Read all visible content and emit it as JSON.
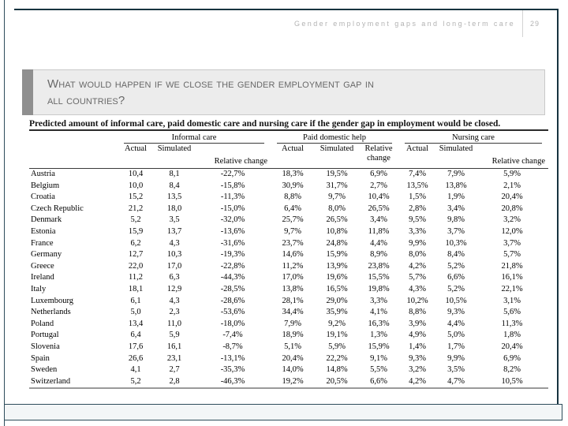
{
  "page": {
    "header_text": "Gender employment gaps and long-term care",
    "page_number": "29"
  },
  "title": {
    "line1": "What would happen if we close the gender employment gap in",
    "line2": "all countries?"
  },
  "table": {
    "caption": "Predicted amount of informal care, paid domestic care and nursing care if the gender gap in employment would be closed.",
    "groups": [
      {
        "label": "Informal care"
      },
      {
        "label": "Paid domestic help"
      },
      {
        "label": "Nursing care"
      }
    ],
    "subheaders": [
      "Actual",
      "Simulated",
      "Relative change"
    ],
    "rows": [
      {
        "country": "Austria",
        "values": [
          "10,4",
          "8,1",
          "-22,7%",
          "18,3%",
          "19,5%",
          "6,9%",
          "7,4%",
          "7,9%",
          "5,9%"
        ]
      },
      {
        "country": "Belgium",
        "values": [
          "10,0",
          "8,4",
          "-15,8%",
          "30,9%",
          "31,7%",
          "2,7%",
          "13,5%",
          "13,8%",
          "2,1%"
        ]
      },
      {
        "country": "Croatia",
        "values": [
          "15,2",
          "13,5",
          "-11,3%",
          "8,8%",
          "9,7%",
          "10,4%",
          "1,5%",
          "1,9%",
          "20,4%"
        ]
      },
      {
        "country": "Czech Republic",
        "values": [
          "21,2",
          "18,0",
          "-15,0%",
          "6,4%",
          "8,0%",
          "26,5%",
          "2,8%",
          "3,4%",
          "20,8%"
        ]
      },
      {
        "country": "Denmark",
        "values": [
          "5,2",
          "3,5",
          "-32,0%",
          "25,7%",
          "26,5%",
          "3,4%",
          "9,5%",
          "9,8%",
          "3,2%"
        ]
      },
      {
        "country": "Estonia",
        "values": [
          "15,9",
          "13,7",
          "-13,6%",
          "9,7%",
          "10,8%",
          "11,8%",
          "3,3%",
          "3,7%",
          "12,0%"
        ]
      },
      {
        "country": "France",
        "values": [
          "6,2",
          "4,3",
          "-31,6%",
          "23,7%",
          "24,8%",
          "4,4%",
          "9,9%",
          "10,3%",
          "3,7%"
        ]
      },
      {
        "country": "Germany",
        "values": [
          "12,7",
          "10,3",
          "-19,3%",
          "14,6%",
          "15,9%",
          "8,9%",
          "8,0%",
          "8,4%",
          "5,7%"
        ]
      },
      {
        "country": "Greece",
        "values": [
          "22,0",
          "17,0",
          "-22,8%",
          "11,2%",
          "13,9%",
          "23,8%",
          "4,2%",
          "5,2%",
          "21,8%"
        ]
      },
      {
        "country": "Ireland",
        "values": [
          "11,2",
          "6,3",
          "-44,3%",
          "17,0%",
          "19,6%",
          "15,5%",
          "5,7%",
          "6,6%",
          "16,1%"
        ]
      },
      {
        "country": "Italy",
        "values": [
          "18,1",
          "12,9",
          "-28,5%",
          "13,8%",
          "16,5%",
          "19,8%",
          "4,3%",
          "5,2%",
          "22,1%"
        ]
      },
      {
        "country": "Luxembourg",
        "values": [
          "6,1",
          "4,3",
          "-28,6%",
          "28,1%",
          "29,0%",
          "3,3%",
          "10,2%",
          "10,5%",
          "3,1%"
        ]
      },
      {
        "country": "Netherlands",
        "values": [
          "5,0",
          "2,3",
          "-53,6%",
          "34,4%",
          "35,9%",
          "4,1%",
          "8,8%",
          "9,3%",
          "5,6%"
        ]
      },
      {
        "country": "Poland",
        "values": [
          "13,4",
          "11,0",
          "-18,0%",
          "7,9%",
          "9,2%",
          "16,3%",
          "3,9%",
          "4,4%",
          "11,3%"
        ]
      },
      {
        "country": "Portugal",
        "values": [
          "6,4",
          "5,9",
          "-7,4%",
          "18,9%",
          "19,1%",
          "1,3%",
          "4,9%",
          "5,0%",
          "1,8%"
        ]
      },
      {
        "country": "Slovenia",
        "values": [
          "17,6",
          "16,1",
          "-8,7%",
          "5,1%",
          "5,9%",
          "15,9%",
          "1,4%",
          "1,7%",
          "20,4%"
        ]
      },
      {
        "country": "Spain",
        "values": [
          "26,6",
          "23,1",
          "-13,1%",
          "20,4%",
          "22,2%",
          "9,1%",
          "9,3%",
          "9,9%",
          "6,9%"
        ]
      },
      {
        "country": "Sweden",
        "values": [
          "4,1",
          "2,7",
          "-35,3%",
          "14,0%",
          "14,8%",
          "5,5%",
          "3,2%",
          "3,5%",
          "8,2%"
        ]
      },
      {
        "country": "Switzerland",
        "values": [
          "5,2",
          "2,8",
          "-46,3%",
          "19,2%",
          "20,5%",
          "6,6%",
          "4,2%",
          "4,7%",
          "10,5%"
        ]
      }
    ]
  },
  "colors": {
    "frame": "#16333f",
    "accent_bar": "#8f8f8f",
    "title_box_bg": "#ececec",
    "header_text": "#b3b3b3",
    "footer_bg": "#f3f6f7"
  }
}
